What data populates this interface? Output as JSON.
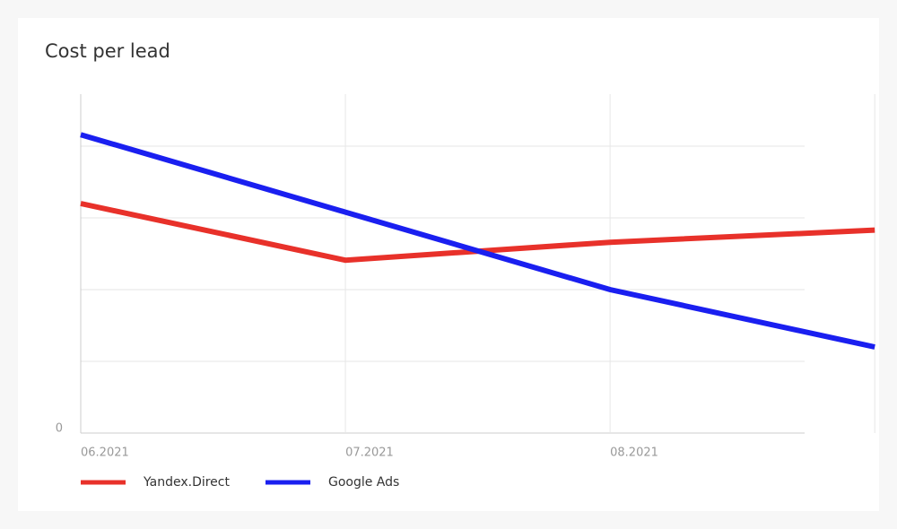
{
  "chart_data": {
    "type": "line",
    "title": "Cost per lead",
    "categories": [
      "06.2021",
      "07.2021",
      "08.2021",
      null
    ],
    "xlim": [
      0,
      2.735
    ],
    "series": [
      {
        "name": "Yandex.Direct",
        "color": "#e8312a",
        "values": [
          3.2,
          2.41,
          2.66,
          2.83
        ]
      },
      {
        "name": "Google Ads",
        "color": "#1a1ff0",
        "values": [
          4.16,
          3.08,
          2.0,
          1.2
        ]
      }
    ],
    "ylim": [
      0,
      4.725
    ],
    "yticks": [
      0,
      {
        "value": 1,
        "label": null
      },
      {
        "value": 2,
        "label": null
      },
      {
        "value": 3,
        "label": null
      },
      {
        "value": 4,
        "label": null
      }
    ],
    "grid": true,
    "legend": "bottom-left"
  }
}
